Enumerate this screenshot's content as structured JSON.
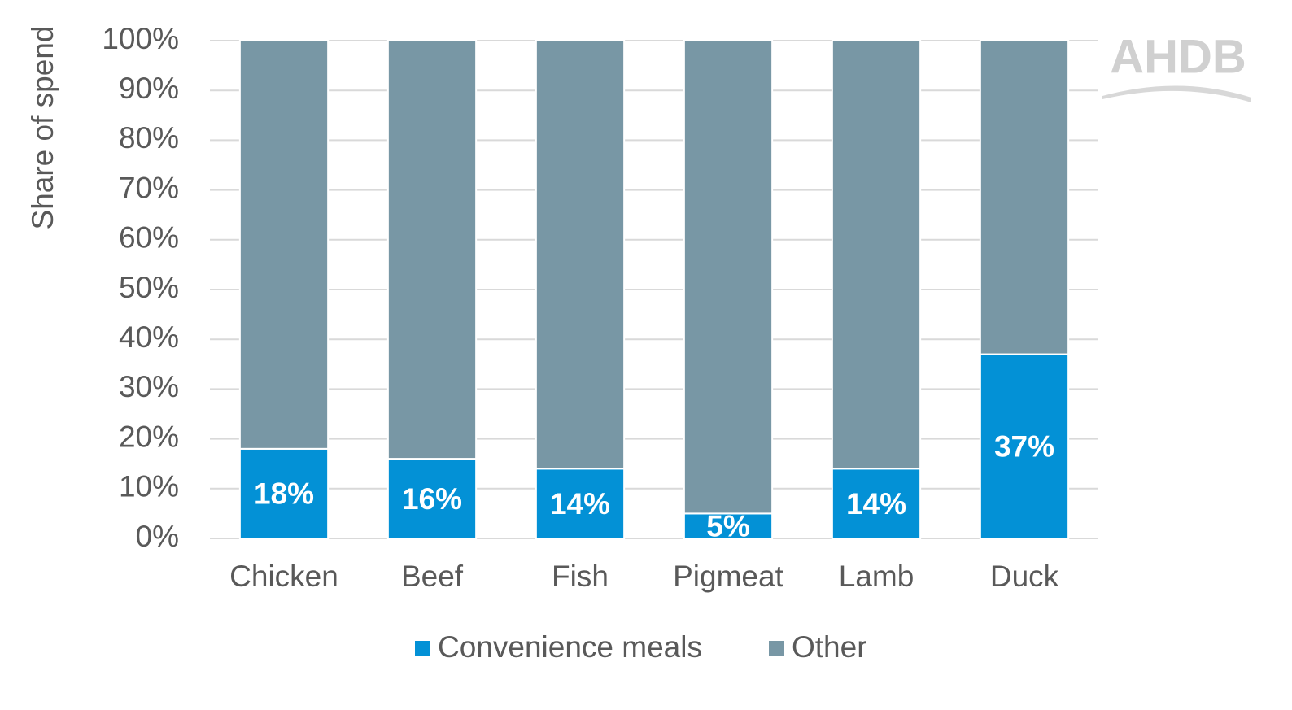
{
  "chart_data": {
    "type": "bar",
    "stacked": true,
    "y_label": "Share of spend",
    "logo": "AHDB",
    "categories": [
      "Chicken",
      "Beef",
      "Fish",
      "Pigmeat",
      "Lamb",
      "Duck"
    ],
    "series": [
      {
        "name": "Convenience meals",
        "color": "#0391d6",
        "values": [
          18,
          16,
          14,
          5,
          14,
          37
        ],
        "value_labels": [
          "18%",
          "16%",
          "14%",
          "5%",
          "14%",
          "37%"
        ]
      },
      {
        "name": "Other",
        "color": "#7897a5",
        "values": [
          82,
          84,
          86,
          95,
          86,
          63
        ]
      }
    ],
    "ylim": [
      0,
      100
    ],
    "yticks": [
      {
        "value": 0,
        "label": "0%"
      },
      {
        "value": 10,
        "label": "10%"
      },
      {
        "value": 20,
        "label": "20%"
      },
      {
        "value": 30,
        "label": "30%"
      },
      {
        "value": 40,
        "label": "40%"
      },
      {
        "value": 50,
        "label": "50%"
      },
      {
        "value": 60,
        "label": "60%"
      },
      {
        "value": 70,
        "label": "70%"
      },
      {
        "value": 80,
        "label": "80%"
      },
      {
        "value": 90,
        "label": "90%"
      },
      {
        "value": 100,
        "label": "100%"
      }
    ],
    "grid": true,
    "legend": "bottom"
  }
}
